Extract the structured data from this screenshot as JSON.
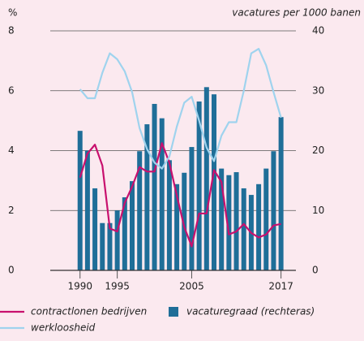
{
  "chart_data": {
    "type": "bar-line",
    "ylabel": "%",
    "y2label": "vacatures per 1000 banen",
    "x": [
      1990,
      1991,
      1992,
      1993,
      1994,
      1995,
      1996,
      1997,
      1998,
      1999,
      2000,
      2001,
      2002,
      2003,
      2004,
      2005,
      2006,
      2007,
      2008,
      2009,
      2010,
      2011,
      2012,
      2013,
      2014,
      2015,
      2016,
      2017
    ],
    "xlim": [
      1986,
      2019
    ],
    "xticks": [
      1990,
      1995,
      2005,
      2017
    ],
    "ylim": [
      0,
      8
    ],
    "yticks": [
      0,
      2,
      4,
      6,
      8
    ],
    "y2lim": [
      0,
      40
    ],
    "y2ticks": [
      0,
      10,
      20,
      30,
      40
    ],
    "grid": true,
    "series": [
      {
        "name": "vacaturegraad (rechteras)",
        "type": "bar",
        "axis": "y2",
        "color": "#1f6e98",
        "values": [
          23.3,
          20,
          13.7,
          7.9,
          7.9,
          10,
          12.2,
          14.9,
          19.9,
          24.4,
          27.8,
          25.4,
          18.4,
          14.4,
          16.3,
          20.6,
          28.2,
          30.6,
          29.4,
          17,
          15.9,
          16.4,
          13.7,
          12.6,
          14.4,
          17,
          19.9,
          25.6
        ]
      },
      {
        "name": "contractlonen bedrijven",
        "type": "line",
        "color": "#c8106e",
        "values": [
          3.1,
          3.9,
          4.2,
          3.5,
          1.4,
          1.3,
          2.25,
          2.8,
          3.45,
          3.3,
          3.3,
          4.25,
          3.6,
          2.5,
          1.45,
          0.8,
          1.9,
          1.9,
          3.35,
          2.95,
          1.2,
          1.3,
          1.55,
          1.25,
          1.1,
          1.2,
          1.5,
          1.55
        ]
      },
      {
        "name": "werkloosheid",
        "type": "line",
        "color": "#9fd3ee",
        "values": [
          6.05,
          5.75,
          5.75,
          6.6,
          7.25,
          7.05,
          6.65,
          5.95,
          4.75,
          4.05,
          3.6,
          3.4,
          3.8,
          4.8,
          5.6,
          5.8,
          5.0,
          4.1,
          3.65,
          4.5,
          4.95,
          4.95,
          6.0,
          7.25,
          7.4,
          6.85,
          5.95,
          5.1
        ]
      }
    ]
  }
}
